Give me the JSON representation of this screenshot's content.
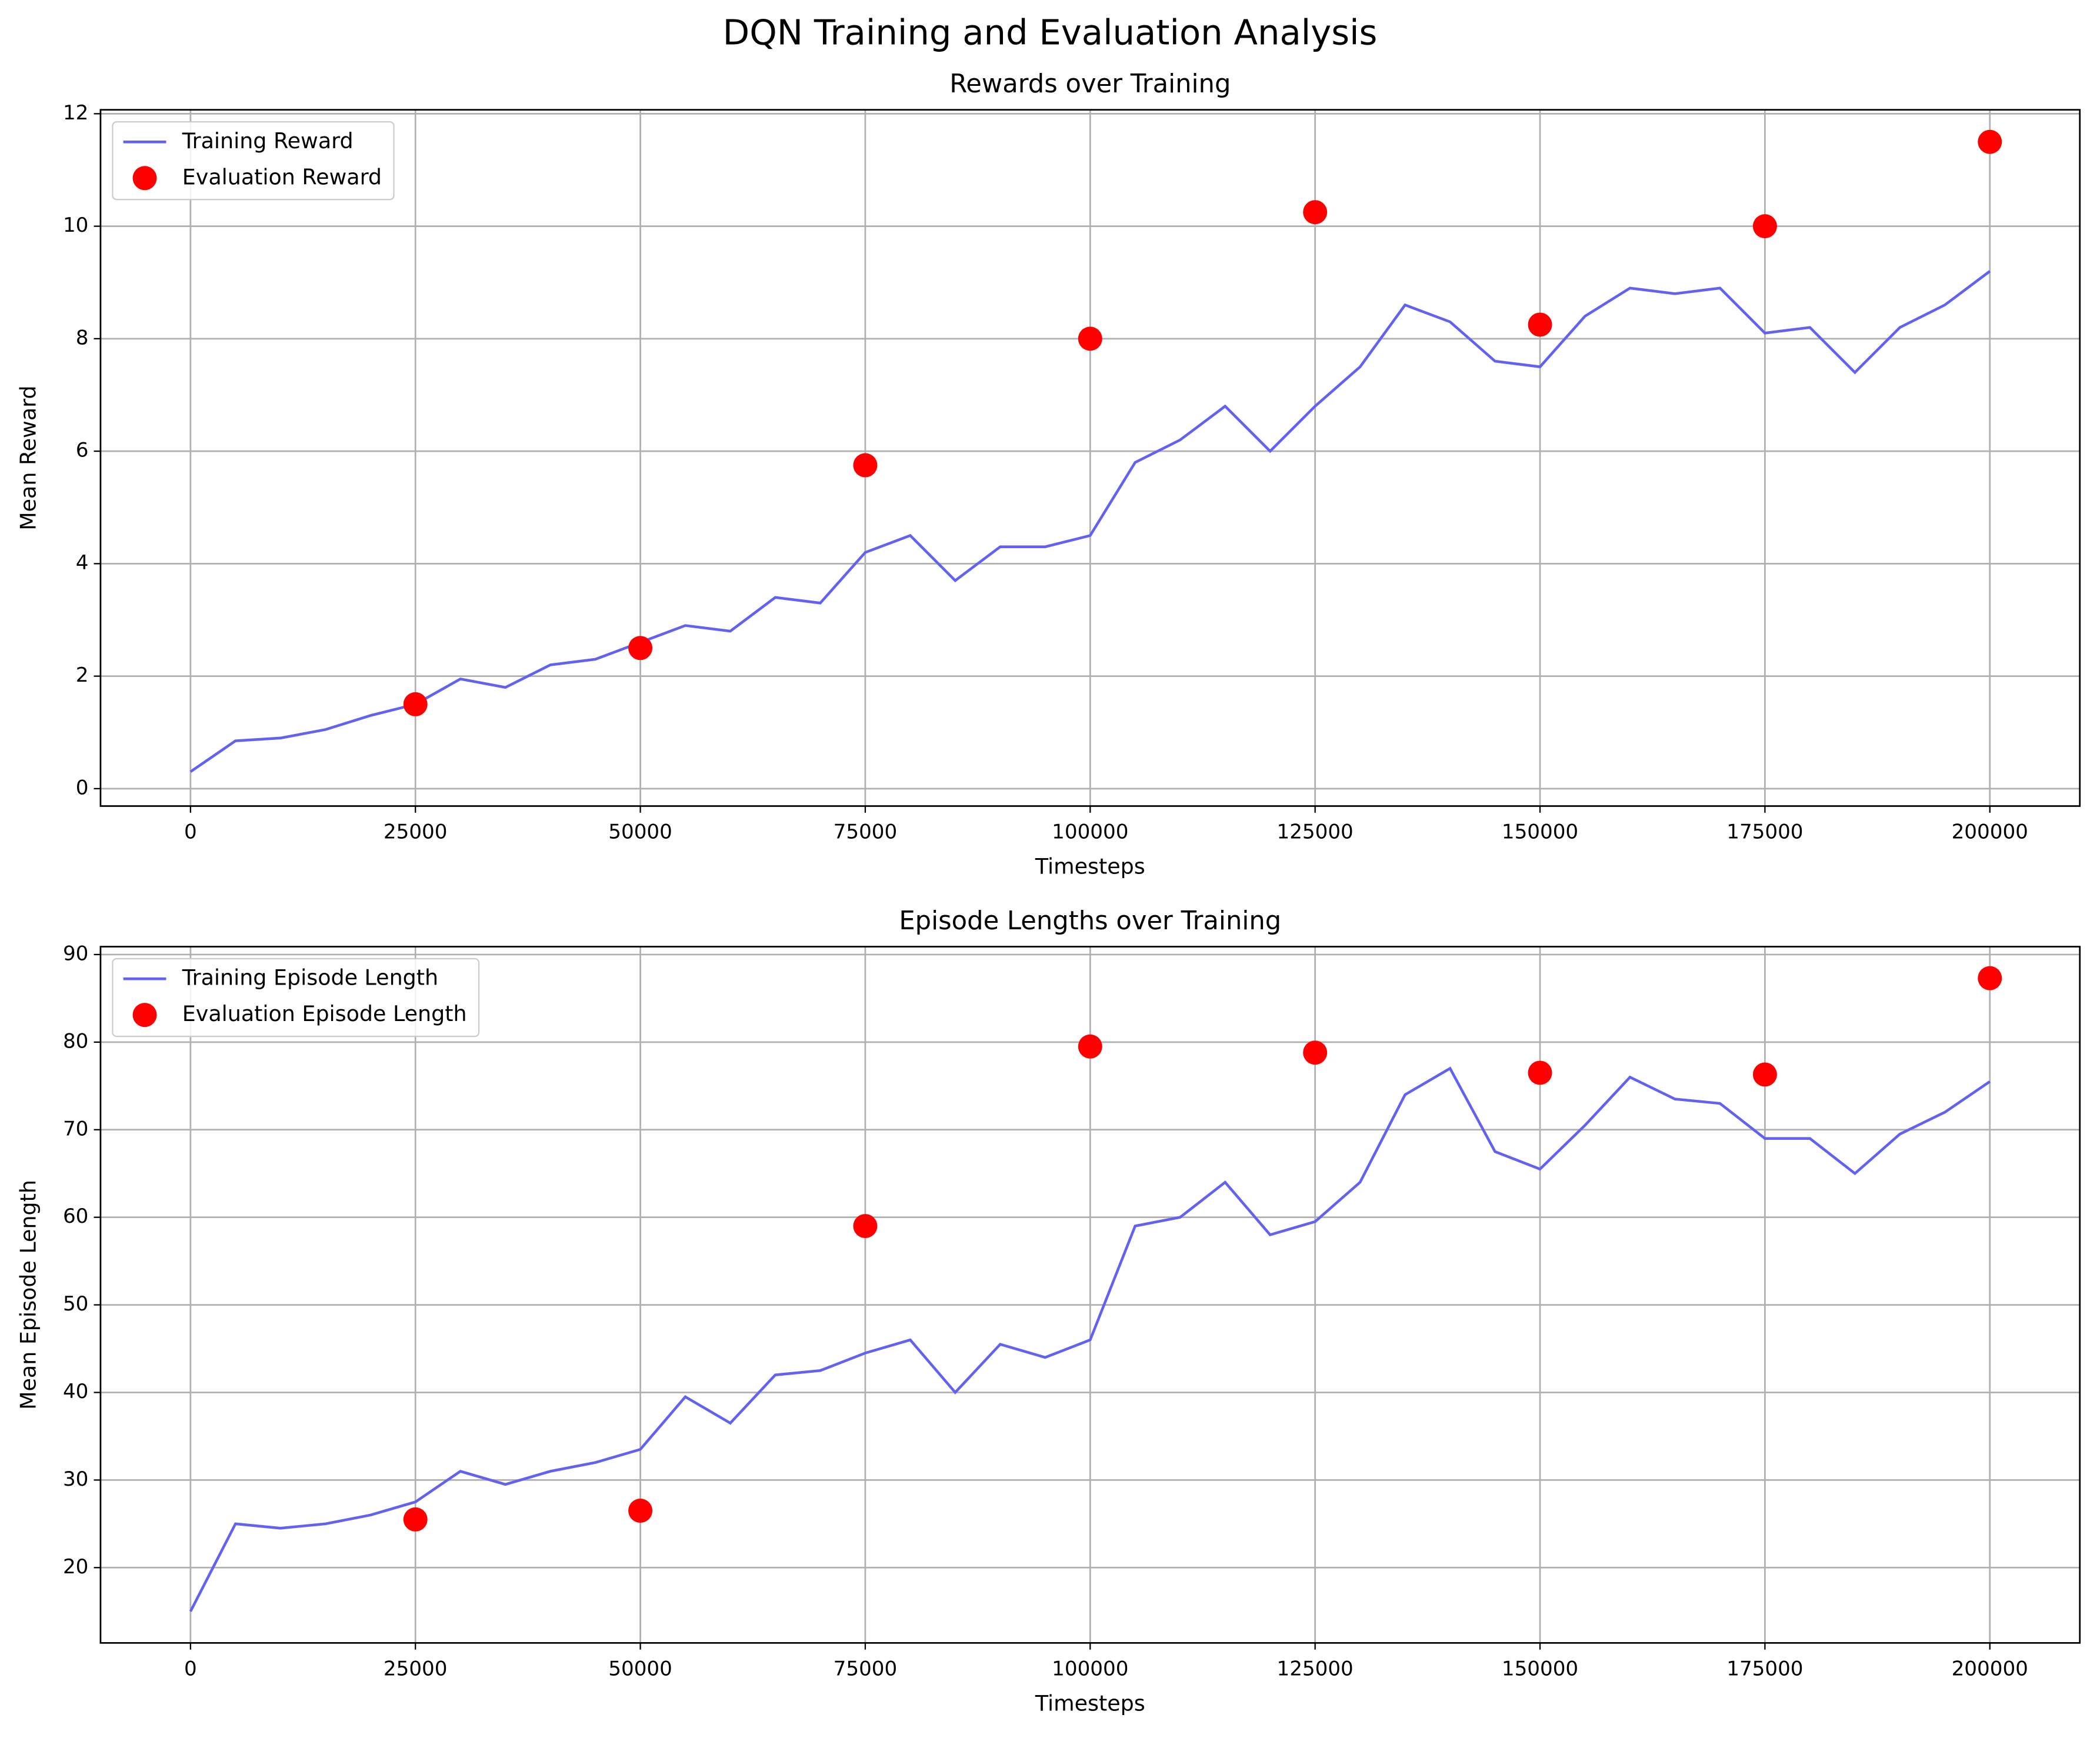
{
  "title": "DQN Training and Evaluation Analysis",
  "chart_data": [
    {
      "type": "line",
      "title": "Rewards over Training",
      "xlabel": "Timesteps",
      "ylabel": "Mean Reward",
      "xlim": [
        -10000,
        210000
      ],
      "ylim": [
        -0.31,
        12.07
      ],
      "xticks": [
        0,
        25000,
        50000,
        75000,
        100000,
        125000,
        150000,
        175000,
        200000
      ],
      "yticks": [
        0,
        2,
        4,
        6,
        8,
        10,
        12
      ],
      "grid": true,
      "legend": "upper left",
      "series": [
        {
          "name": "Training Reward",
          "type": "line",
          "color": "#6262f2",
          "x": [
            0,
            5000,
            10000,
            15000,
            20000,
            25000,
            30000,
            35000,
            40000,
            45000,
            50000,
            55000,
            60000,
            65000,
            70000,
            75000,
            80000,
            85000,
            90000,
            95000,
            100000,
            105000,
            110000,
            115000,
            120000,
            125000,
            130000,
            135000,
            140000,
            145000,
            150000,
            155000,
            160000,
            165000,
            170000,
            175000,
            180000,
            185000,
            190000,
            195000,
            200000
          ],
          "values": [
            0.3,
            0.85,
            0.9,
            1.05,
            1.3,
            1.5,
            1.95,
            1.8,
            2.2,
            2.3,
            2.6,
            2.9,
            2.8,
            3.4,
            3.3,
            4.2,
            4.5,
            3.7,
            4.3,
            4.3,
            4.5,
            5.8,
            6.2,
            6.8,
            6.0,
            6.8,
            7.5,
            8.6,
            8.3,
            7.6,
            7.5,
            8.4,
            8.9,
            8.8,
            8.9,
            8.1,
            8.2,
            7.4,
            8.2,
            8.6,
            9.2
          ]
        },
        {
          "name": "Evaluation Reward",
          "type": "scatter",
          "color": "#ff0000",
          "x": [
            25000,
            50000,
            75000,
            100000,
            125000,
            150000,
            175000,
            200000
          ],
          "values": [
            1.5,
            2.5,
            5.75,
            8.0,
            10.25,
            8.25,
            10.0,
            11.5
          ]
        }
      ]
    },
    {
      "type": "line",
      "title": "Episode Lengths over Training",
      "xlabel": "Timesteps",
      "ylabel": "Mean Episode Length",
      "xlim": [
        -10000,
        210000
      ],
      "ylim": [
        11.4,
        90.9
      ],
      "xticks": [
        0,
        25000,
        50000,
        75000,
        100000,
        125000,
        150000,
        175000,
        200000
      ],
      "yticks": [
        20,
        30,
        40,
        50,
        60,
        70,
        80,
        90
      ],
      "grid": true,
      "legend": "upper left",
      "series": [
        {
          "name": "Training Episode Length",
          "type": "line",
          "color": "#6262f2",
          "x": [
            0,
            5000,
            10000,
            15000,
            20000,
            25000,
            30000,
            35000,
            40000,
            45000,
            50000,
            55000,
            60000,
            65000,
            70000,
            75000,
            80000,
            85000,
            90000,
            95000,
            100000,
            105000,
            110000,
            115000,
            120000,
            125000,
            130000,
            135000,
            140000,
            145000,
            150000,
            155000,
            160000,
            165000,
            170000,
            175000,
            180000,
            185000,
            190000,
            195000,
            200000
          ],
          "values": [
            15,
            25,
            24.5,
            25,
            26,
            27.5,
            31,
            29.5,
            31,
            32,
            33.5,
            39.5,
            36.5,
            42,
            42.5,
            44.5,
            46,
            40,
            45.5,
            44,
            46,
            59,
            60,
            64,
            58,
            59.5,
            64,
            74,
            77,
            67.5,
            65.5,
            70.5,
            76,
            73.5,
            73,
            69,
            69,
            65,
            69.5,
            72,
            75.5
          ]
        },
        {
          "name": "Evaluation Episode Length",
          "type": "scatter",
          "color": "#ff0000",
          "x": [
            25000,
            50000,
            75000,
            100000,
            125000,
            150000,
            175000,
            200000
          ],
          "values": [
            25.5,
            26.5,
            59,
            79.5,
            78.8,
            76.5,
            76.3,
            87.3
          ]
        }
      ]
    }
  ]
}
